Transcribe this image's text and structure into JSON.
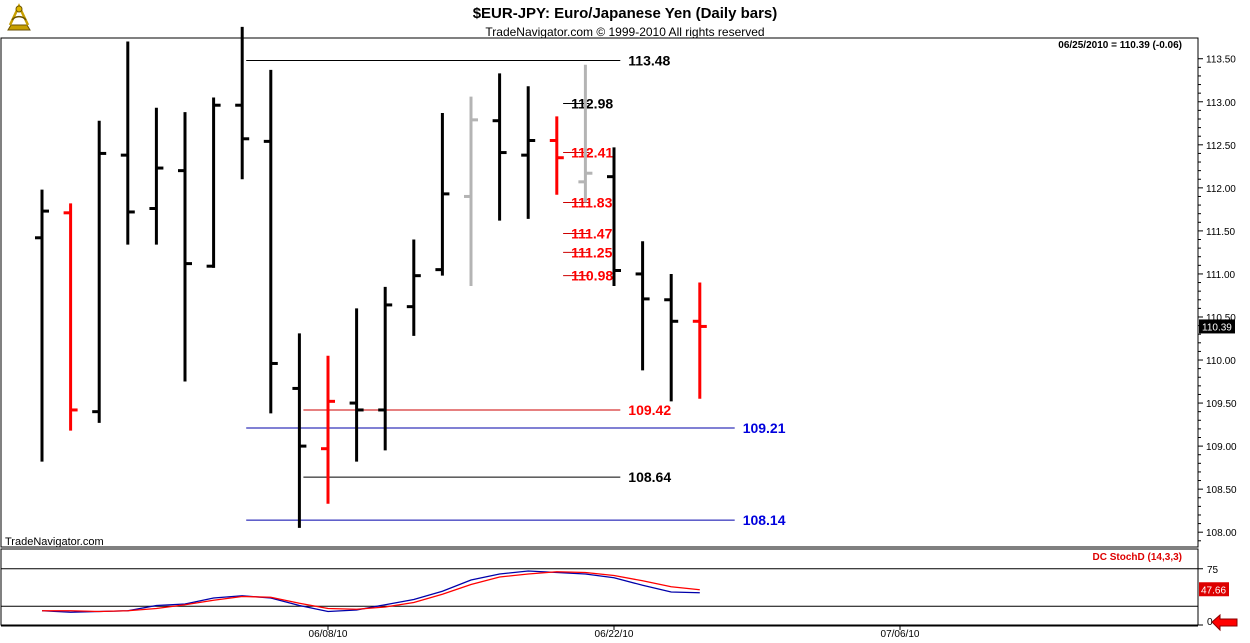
{
  "header": {
    "title": "$EUR-JPY:  Euro/Japanese Yen  (Daily bars)",
    "copyright": "TradeNavigator.com © 1999-2010 All rights reserved",
    "last_quote": "06/25/2010 = 110.39 (-0.06)",
    "watermark": "TradeNavigator.com",
    "logo_icon": "sextant-logo-icon"
  },
  "colors": {
    "black_bar": "#000000",
    "red_bar": "#ff0000",
    "gray_bar": "#b4b4b4",
    "blue_line": "#0000aa",
    "red_line": "#cc0000",
    "price_tag_bg": "#000000",
    "stoch_tag_bg": "#dd0000"
  },
  "chart_data": [
    {
      "type": "ohlc",
      "ylim": [
        107.9,
        113.85
      ],
      "y_ticks": [
        "113.50",
        "113.00",
        "112.50",
        "112.00",
        "111.50",
        "111.00",
        "110.50",
        "110.00",
        "109.50",
        "109.00",
        "108.50",
        "108.00"
      ],
      "x_tick_labels": [
        "06/08/10",
        "06/22/10",
        "07/06/10"
      ],
      "x_tick_index": [
        10,
        20,
        30
      ],
      "bars": [
        {
          "i": 0,
          "o": 111.42,
          "h": 111.98,
          "l": 108.82,
          "c": 111.73,
          "color": "black"
        },
        {
          "i": 1,
          "o": 111.71,
          "h": 111.82,
          "l": 109.18,
          "c": 109.42,
          "color": "red"
        },
        {
          "i": 2,
          "o": 109.4,
          "h": 112.78,
          "l": 109.27,
          "c": 112.4,
          "color": "black"
        },
        {
          "i": 3,
          "o": 112.38,
          "h": 113.7,
          "l": 111.34,
          "c": 111.72,
          "color": "black"
        },
        {
          "i": 4,
          "o": 111.76,
          "h": 112.93,
          "l": 111.34,
          "c": 112.23,
          "color": "black"
        },
        {
          "i": 5,
          "o": 112.2,
          "h": 112.88,
          "l": 109.75,
          "c": 111.12,
          "color": "black"
        },
        {
          "i": 6,
          "o": 111.09,
          "h": 113.05,
          "l": 111.07,
          "c": 112.96,
          "color": "black"
        },
        {
          "i": 7,
          "o": 112.96,
          "h": 113.87,
          "l": 112.1,
          "c": 112.57,
          "color": "black"
        },
        {
          "i": 8,
          "o": 112.54,
          "h": 113.37,
          "l": 109.38,
          "c": 109.96,
          "color": "black"
        },
        {
          "i": 9,
          "o": 109.67,
          "h": 110.31,
          "l": 108.05,
          "c": 109.0,
          "color": "black"
        },
        {
          "i": 10,
          "o": 108.97,
          "h": 110.05,
          "l": 108.33,
          "c": 109.52,
          "color": "red"
        },
        {
          "i": 11,
          "o": 109.5,
          "h": 110.6,
          "l": 108.82,
          "c": 109.42,
          "color": "black"
        },
        {
          "i": 12,
          "o": 109.42,
          "h": 110.85,
          "l": 108.95,
          "c": 110.64,
          "color": "black"
        },
        {
          "i": 13,
          "o": 110.62,
          "h": 111.4,
          "l": 110.28,
          "c": 110.98,
          "color": "black"
        },
        {
          "i": 14,
          "o": 111.05,
          "h": 112.87,
          "l": 110.98,
          "c": 111.93,
          "color": "black"
        },
        {
          "i": 15,
          "o": 111.9,
          "h": 113.06,
          "l": 110.86,
          "c": 112.79,
          "color": "gray"
        },
        {
          "i": 16,
          "o": 112.78,
          "h": 113.33,
          "l": 111.62,
          "c": 112.41,
          "color": "black"
        },
        {
          "i": 17,
          "o": 112.38,
          "h": 113.18,
          "l": 111.64,
          "c": 112.55,
          "color": "black"
        },
        {
          "i": 18,
          "o": 112.55,
          "h": 112.83,
          "l": 111.92,
          "c": 112.35,
          "color": "red"
        },
        {
          "i": 19,
          "o": 112.07,
          "h": 113.43,
          "l": 111.83,
          "c": 112.17,
          "color": "gray"
        },
        {
          "i": 20,
          "o": 112.13,
          "h": 112.47,
          "l": 110.86,
          "c": 111.04,
          "color": "black"
        },
        {
          "i": 21,
          "o": 111.0,
          "h": 111.38,
          "l": 109.88,
          "c": 110.71,
          "color": "black"
        },
        {
          "i": 22,
          "o": 110.7,
          "h": 111.0,
          "l": 109.52,
          "c": 110.45,
          "color": "black"
        },
        {
          "i": 23,
          "o": 110.45,
          "h": 110.9,
          "l": 109.55,
          "c": 110.39,
          "color": "red"
        }
      ],
      "levels": [
        {
          "label": "113.48",
          "value": 113.48,
          "color": "black",
          "from_i": 7,
          "label_i": 20.5
        },
        {
          "label": "112.98",
          "value": 112.98,
          "color": "black",
          "from_i": 19,
          "label_i": 18.5
        },
        {
          "label": "112.41",
          "value": 112.41,
          "color": "red",
          "from_i": 19,
          "label_i": 18.5
        },
        {
          "label": "111.83",
          "value": 111.83,
          "color": "red",
          "from_i": 19,
          "label_i": 18.5
        },
        {
          "label": "111.47",
          "value": 111.47,
          "color": "red",
          "from_i": 19,
          "label_i": 18.5
        },
        {
          "label": "111.25",
          "value": 111.25,
          "color": "red",
          "from_i": 19,
          "label_i": 18.5
        },
        {
          "label": "110.98",
          "value": 110.98,
          "color": "red",
          "from_i": 19,
          "label_i": 18.5
        },
        {
          "label": "109.42",
          "value": 109.42,
          "color": "red",
          "from_i": 9,
          "label_i": 20.5
        },
        {
          "label": "109.21",
          "value": 109.21,
          "color": "blue",
          "from_i": 7,
          "label_i": 24.5
        },
        {
          "label": "108.64",
          "value": 108.64,
          "color": "black",
          "from_i": 9,
          "label_i": 20.5
        },
        {
          "label": "108.14",
          "value": 108.14,
          "color": "blue",
          "from_i": 7,
          "label_i": 24.5
        }
      ],
      "price_tag": "110.39"
    },
    {
      "type": "line",
      "title": "DC StochD (14,3,3)",
      "ylim": [
        0,
        100
      ],
      "y_ticks": [
        "75",
        "0"
      ],
      "reference_lines": [
        75,
        25
      ],
      "value_tag": "47.66",
      "series": [
        {
          "color": "blue",
          "points": [
            [
              0,
              19
            ],
            [
              1,
              17
            ],
            [
              2,
              18
            ],
            [
              3,
              19
            ],
            [
              4,
              26
            ],
            [
              5,
              28
            ],
            [
              6,
              36
            ],
            [
              7,
              39
            ],
            [
              8,
              36
            ],
            [
              9,
              26
            ],
            [
              10,
              18
            ],
            [
              11,
              20
            ],
            [
              12,
              27
            ],
            [
              13,
              34
            ],
            [
              14,
              45
            ],
            [
              15,
              60
            ],
            [
              16,
              68
            ],
            [
              17,
              72
            ],
            [
              18,
              70
            ],
            [
              19,
              68
            ],
            [
              20,
              63
            ],
            [
              21,
              53
            ],
            [
              22,
              44
            ],
            [
              23,
              43
            ]
          ]
        },
        {
          "color": "red",
          "points": [
            [
              0,
              19
            ],
            [
              1,
              19
            ],
            [
              2,
              18
            ],
            [
              3,
              19
            ],
            [
              4,
              22
            ],
            [
              5,
              27
            ],
            [
              6,
              33
            ],
            [
              7,
              38
            ],
            [
              8,
              37
            ],
            [
              9,
              29
            ],
            [
              10,
              22
            ],
            [
              11,
              21
            ],
            [
              12,
              24
            ],
            [
              13,
              30
            ],
            [
              14,
              41
            ],
            [
              15,
              54
            ],
            [
              16,
              64
            ],
            [
              17,
              68
            ],
            [
              18,
              71
            ],
            [
              19,
              70
            ],
            [
              20,
              66
            ],
            [
              21,
              59
            ],
            [
              22,
              51
            ],
            [
              23,
              47
            ]
          ]
        }
      ]
    }
  ]
}
